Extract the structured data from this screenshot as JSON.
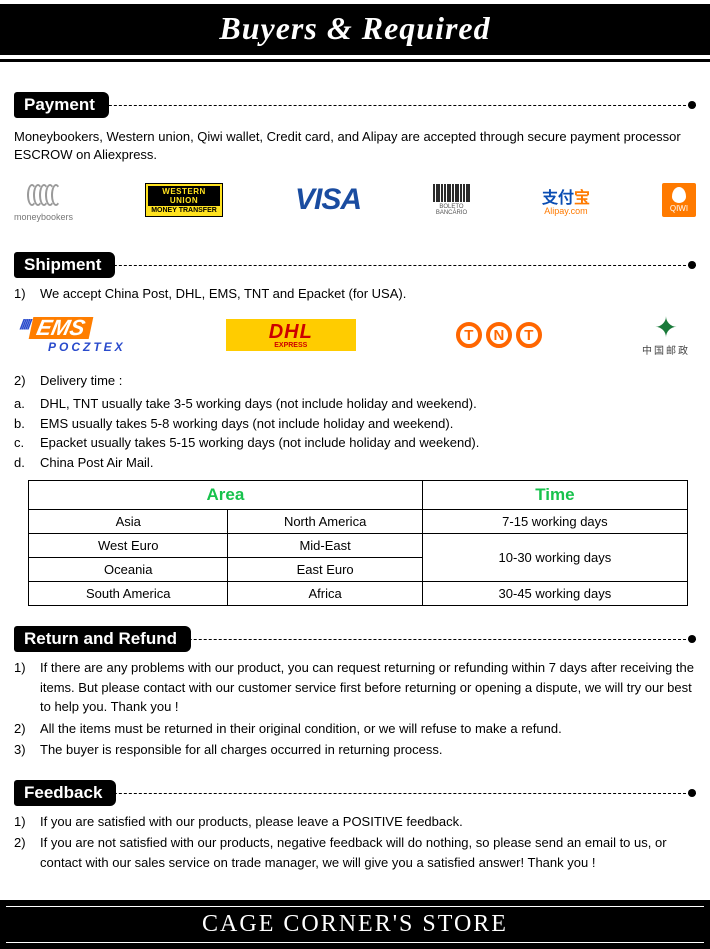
{
  "header": {
    "title": "Buyers & Required"
  },
  "payment": {
    "heading": "Payment",
    "body": "Moneybookers, Western union, Qiwi wallet, Credit card, and Alipay are accepted through secure payment processor ESCROW on Aliexpress.",
    "logos": {
      "moneybookers_caption": "moneybookers",
      "wu_top": "WESTERN UNION",
      "wu_bot": "MONEY TRANSFER",
      "visa": "VISA",
      "boleto_line1": "BOLETO",
      "boleto_line2": "BANCÁRIO",
      "alipay_cn_zhi": "支付",
      "alipay_cn_bao": "宝",
      "alipay_en": "Alipay.com",
      "qiwi": "QIWI"
    }
  },
  "shipment": {
    "heading": "Shipment",
    "accept_marker": "1)",
    "accept": "We accept China Post, DHL, EMS, TNT and Epacket (for USA).",
    "logos": {
      "ems_slashes": "/////",
      "ems": "EMS",
      "ems_sub": "POCZTEX",
      "dhl": "DHL",
      "dhl_sub": "EXPRESS",
      "tnt_t1": "T",
      "tnt_n": "N",
      "tnt_t2": "T",
      "chinapost_sym": "✦",
      "chinapost_txt": "中国邮政"
    },
    "delivery_marker": "2)",
    "delivery_intro": "Delivery time :",
    "delivery_items": [
      {
        "marker": "a.",
        "text": "DHL, TNT usually take 3-5 working days (not include holiday and weekend)."
      },
      {
        "marker": "b.",
        "text": "EMS usually takes 5-8 working days (not include holiday and weekend)."
      },
      {
        "marker": "c.",
        "text": "Epacket usually takes 5-15 working days (not include holiday and weekend)."
      },
      {
        "marker": "d.",
        "text": "China Post Air Mail."
      }
    ],
    "table": {
      "header_accent_color": "#17c24c",
      "col_area": "Area",
      "col_time": "Time",
      "r1c1": "Asia",
      "r1c2": "North America",
      "r1t": "7-15 working days",
      "r2c1": "West Euro",
      "r2c2": "Mid-East",
      "r3c1": "Oceania",
      "r3c2": "East Euro",
      "r23t": "10-30 working days",
      "r4c1": "South America",
      "r4c2": "Africa",
      "r4t": "30-45 working days"
    }
  },
  "return_refund": {
    "heading": "Return and Refund",
    "items": [
      {
        "marker": "1)",
        "text": "If there are any problems with our product, you can request returning or refunding within 7 days after receiving the items. But please contact with our customer service first before returning or opening a dispute, we will try our best to  help you. Thank you !"
      },
      {
        "marker": "2)",
        "text": "All the items must be returned in their original condition, or we will refuse to make a refund."
      },
      {
        "marker": "3)",
        "text": "The buyer is responsible for all charges occurred in returning process."
      }
    ]
  },
  "feedback": {
    "heading": "Feedback",
    "items": [
      {
        "marker": "1)",
        "text": "If you are satisfied with our products, please leave a POSITIVE feedback."
      },
      {
        "marker": "2)",
        "text": "If you are not satisfied with our products, negative feedback will do nothing, so please send an email to us, or contact with our sales service on trade manager, we will give you a satisfied answer! Thank you !"
      }
    ]
  },
  "footer": {
    "store": "CAGE CORNER'S STORE"
  }
}
